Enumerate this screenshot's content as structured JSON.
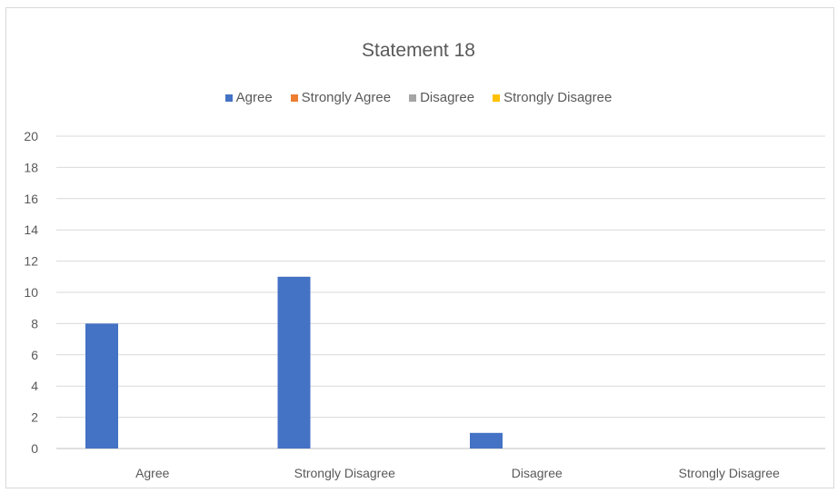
{
  "chart_data": {
    "type": "bar",
    "title": "Statement 18",
    "categories": [
      "Agree",
      "Strongly Disagree",
      "Disagree",
      "Strongly Disagree"
    ],
    "series": [
      {
        "name": "Agree",
        "color": "#4472c4",
        "values": [
          8,
          11,
          1,
          0
        ]
      },
      {
        "name": "Strongly Agree",
        "color": "#ed7d31",
        "values": [
          0,
          0,
          0,
          0
        ]
      },
      {
        "name": "Disagree",
        "color": "#a5a5a5",
        "values": [
          0,
          0,
          0,
          0
        ]
      },
      {
        "name": "Strongly Disagree",
        "color": "#ffc000",
        "values": [
          0,
          0,
          0,
          0
        ]
      }
    ],
    "ylim": [
      0,
      20
    ],
    "yticks": [
      0,
      2,
      4,
      6,
      8,
      10,
      12,
      14,
      16,
      18,
      20
    ],
    "grid": true,
    "legend_position": "top"
  }
}
